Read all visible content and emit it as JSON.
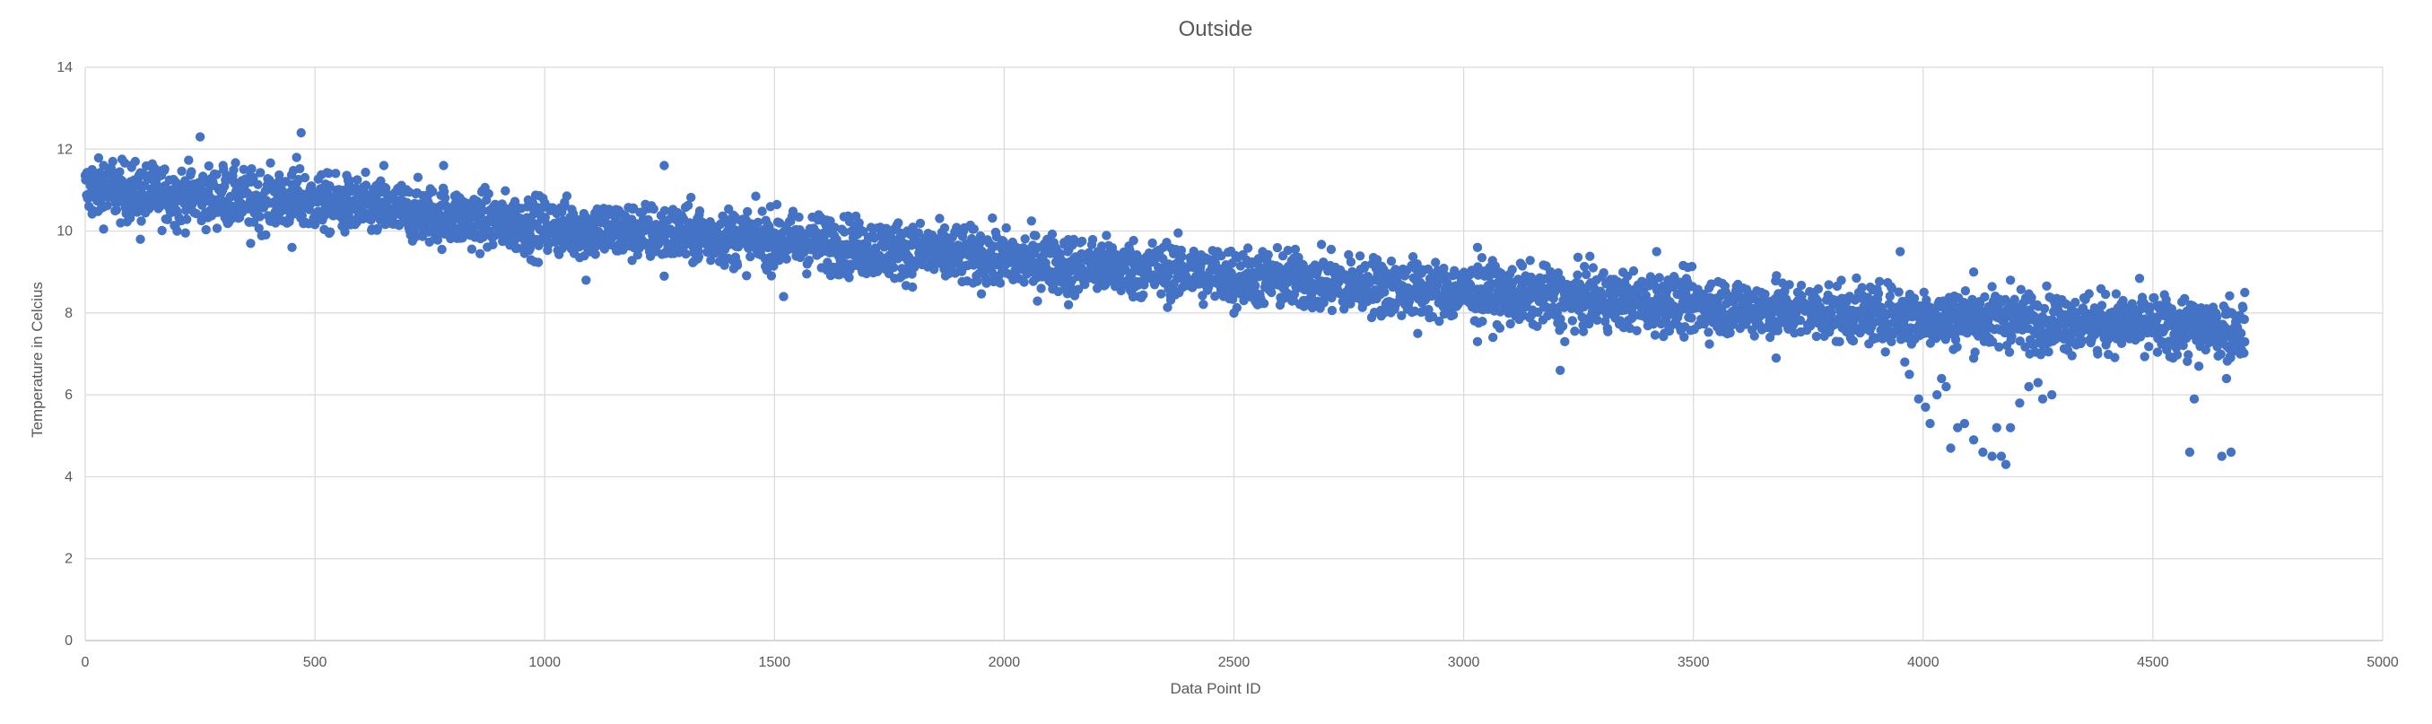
{
  "chart_data": {
    "type": "scatter",
    "title": "Outside",
    "xlabel": "Data Point ID",
    "ylabel": "Temperature in Celcius",
    "xlim": [
      0,
      5000
    ],
    "ylim": [
      0,
      14
    ],
    "xticks": [
      0,
      500,
      1000,
      1500,
      2000,
      2500,
      3000,
      3500,
      4000,
      4500,
      5000
    ],
    "yticks": [
      0,
      2,
      4,
      6,
      8,
      10,
      12,
      14
    ],
    "xtick_labels": [
      "0",
      "500",
      "1000",
      "1500",
      "2000",
      "2500",
      "3000",
      "3500",
      "4000",
      "4500",
      "5000"
    ],
    "ytick_labels": [
      "0",
      "2",
      "4",
      "6",
      "8",
      "10",
      "12",
      "14"
    ],
    "grid": true,
    "legend": "none",
    "marker_color": "#4472c4",
    "series": [
      {
        "trend": [
          [
            0,
            11.0
          ],
          [
            500,
            10.7
          ],
          [
            1000,
            10.1
          ],
          [
            1500,
            9.8
          ],
          [
            2000,
            9.3
          ],
          [
            2500,
            8.9
          ],
          [
            3000,
            8.5
          ],
          [
            3500,
            8.2
          ],
          [
            4000,
            7.9
          ],
          [
            4300,
            7.8
          ],
          [
            4700,
            7.6
          ]
        ],
        "spread": 0.35,
        "point_count": 4700,
        "outliers": [
          [
            15,
            11.5
          ],
          [
            40,
            11.6
          ],
          [
            60,
            11.7
          ],
          [
            100,
            11.6
          ],
          [
            250,
            12.3
          ],
          [
            470,
            12.4
          ],
          [
            460,
            11.8
          ],
          [
            300,
            11.6
          ],
          [
            780,
            11.6
          ],
          [
            650,
            11.6
          ],
          [
            120,
            9.8
          ],
          [
            200,
            10.0
          ],
          [
            360,
            9.7
          ],
          [
            450,
            9.6
          ],
          [
            1090,
            8.8
          ],
          [
            1260,
            11.6
          ],
          [
            1260,
            8.9
          ],
          [
            1520,
            8.4
          ],
          [
            2140,
            8.2
          ],
          [
            2500,
            8.0
          ],
          [
            2900,
            7.5
          ],
          [
            3030,
            7.3
          ],
          [
            3030,
            9.6
          ],
          [
            3210,
            6.6
          ],
          [
            3220,
            7.3
          ],
          [
            3420,
            9.5
          ],
          [
            3680,
            6.9
          ],
          [
            3950,
            9.5
          ],
          [
            3960,
            6.8
          ],
          [
            3970,
            6.5
          ],
          [
            3990,
            5.9
          ],
          [
            4005,
            5.7
          ],
          [
            4015,
            5.3
          ],
          [
            4030,
            6.0
          ],
          [
            4040,
            6.4
          ],
          [
            4050,
            6.2
          ],
          [
            4060,
            4.7
          ],
          [
            4075,
            5.2
          ],
          [
            4090,
            5.3
          ],
          [
            4110,
            4.9
          ],
          [
            4130,
            4.6
          ],
          [
            4150,
            4.5
          ],
          [
            4160,
            5.2
          ],
          [
            4170,
            4.5
          ],
          [
            4180,
            4.3
          ],
          [
            4190,
            5.2
          ],
          [
            4210,
            5.8
          ],
          [
            4230,
            6.2
          ],
          [
            4250,
            6.3
          ],
          [
            4260,
            5.9
          ],
          [
            4280,
            6.0
          ],
          [
            4110,
            9.0
          ],
          [
            4190,
            8.8
          ],
          [
            4380,
            7.0
          ],
          [
            4590,
            5.9
          ],
          [
            4600,
            6.7
          ],
          [
            4580,
            4.6
          ],
          [
            4650,
            4.5
          ],
          [
            4670,
            4.6
          ],
          [
            4660,
            6.4
          ],
          [
            4690,
            7.0
          ],
          [
            4700,
            8.5
          ]
        ]
      }
    ]
  }
}
